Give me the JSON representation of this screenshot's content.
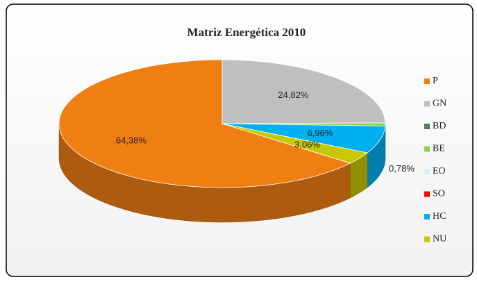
{
  "chart_data": {
    "type": "pie3d",
    "title": "Matriz Energética 2010",
    "categories": [
      "P",
      "GN",
      "BD",
      "BE",
      "EO",
      "SO",
      "HC",
      "NU"
    ],
    "values": [
      64.38,
      24.82,
      0,
      0.78,
      0,
      0,
      6.96,
      3.06
    ],
    "value_labels": [
      "64,38%",
      "24,82%",
      null,
      "0,78%",
      null,
      null,
      "6,96%",
      "3,06%"
    ],
    "colors": [
      "#f07f13",
      "#bfbfbf",
      "#4e7f5f",
      "#8fd14f",
      "#d6eef6",
      "#ff0000",
      "#00b0f0",
      "#c8c800"
    ],
    "legend": "right"
  }
}
